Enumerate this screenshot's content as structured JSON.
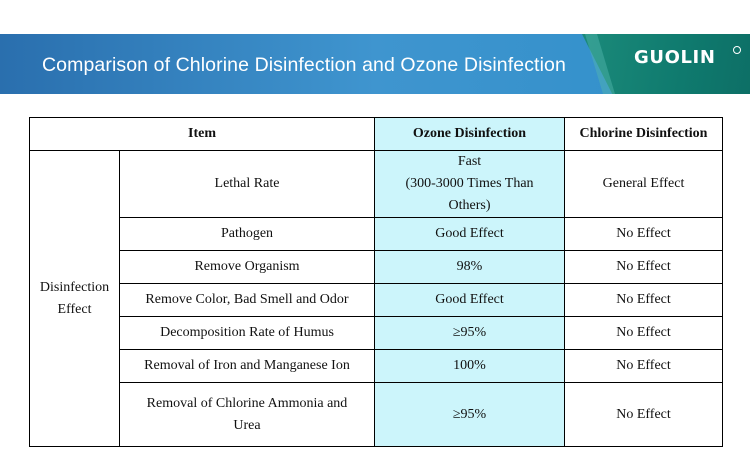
{
  "banner": {
    "title": "Comparison of Chlorine Disinfection and Ozone Disinfection",
    "logo": "GUOLIN",
    "logo_mark_icon": "registered-trademark-icon"
  },
  "colors": {
    "banner_blue": "#3f95cf",
    "logo_green": "#0f7a6e",
    "ozone_highlight": "#ccf5fb"
  },
  "table": {
    "headers": {
      "item": "Item",
      "ozone": "Ozone Disinfection",
      "chlorine": "Chlorine Disinfection"
    },
    "category": {
      "line1": "Disinfection",
      "line2": "Effect"
    },
    "rows": [
      {
        "item": "Lethal Rate",
        "ozone_l1": "Fast",
        "ozone_l2": "(300-3000 Times Than",
        "ozone_l3": "Others)",
        "chlorine": "General Effect"
      },
      {
        "item": "Pathogen",
        "ozone": "Good Effect",
        "chlorine": "No Effect"
      },
      {
        "item": "Remove Organism",
        "ozone": "98%",
        "chlorine": "No Effect"
      },
      {
        "item": "Remove Color, Bad Smell and Odor",
        "ozone": "Good Effect",
        "chlorine": "No Effect"
      },
      {
        "item": "Decomposition Rate of Humus",
        "ozone": "≥95%",
        "chlorine": "No Effect"
      },
      {
        "item": "Removal of Iron and Manganese Ion",
        "ozone": "100%",
        "chlorine": "No Effect"
      },
      {
        "item_l1": "Removal of Chlorine Ammonia and",
        "item_l2": "Urea",
        "ozone": "≥95%",
        "chlorine": "No Effect"
      }
    ]
  }
}
